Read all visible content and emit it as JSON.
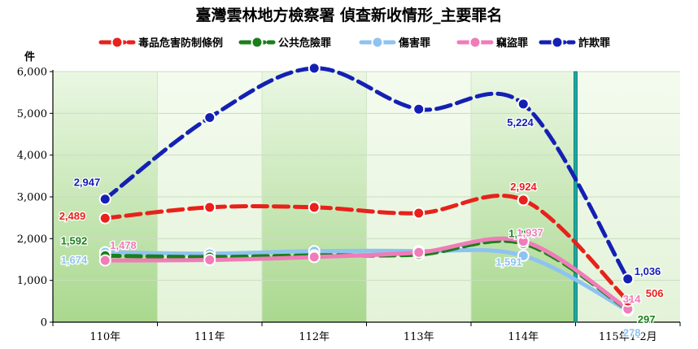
{
  "chart_data": {
    "type": "line",
    "title": "臺灣雲林地方檢察署 偵查新收情形_主要罪名",
    "ylabel": "件",
    "categories": [
      "110年",
      "111年",
      "112年",
      "113年",
      "114年",
      "115年1-2月"
    ],
    "ylim": [
      0,
      6000
    ],
    "yticks": [
      "0",
      "1,000",
      "2,000",
      "3,000",
      "4,000",
      "5,000",
      "6,000"
    ],
    "grid": true,
    "legend_position": "top",
    "series": [
      {
        "name": "毒品危害防制條例",
        "color": "#e8211b",
        "values": [
          2489,
          2750,
          2750,
          2610,
          2924,
          506
        ],
        "labels": [
          "2,489",
          "",
          "",
          "",
          "2,924",
          "506"
        ]
      },
      {
        "name": "公共危險罪",
        "color": "#1a7f1a",
        "values": [
          1592,
          1560,
          1600,
          1620,
          1884,
          297
        ],
        "labels": [
          "1,592",
          "",
          "",
          "",
          "1,884",
          "297"
        ]
      },
      {
        "name": "傷害罪",
        "color": "#8ec3f0",
        "values": [
          1674,
          1640,
          1700,
          1700,
          1591,
          278
        ],
        "labels": [
          "1,674",
          "",
          "",
          "",
          "1,591",
          "278"
        ]
      },
      {
        "name": "竊盜罪",
        "color": "#f07cb8",
        "values": [
          1478,
          1490,
          1560,
          1670,
          1937,
          314
        ],
        "labels": [
          "1,478",
          "",
          "",
          "",
          "1,937",
          "314"
        ]
      },
      {
        "name": "詐欺罪",
        "color": "#1420b4",
        "values": [
          2947,
          4900,
          6080,
          5100,
          5224,
          1036
        ],
        "labels": [
          "2,947",
          "",
          "",
          "",
          "5,224",
          "1,036"
        ]
      }
    ]
  }
}
